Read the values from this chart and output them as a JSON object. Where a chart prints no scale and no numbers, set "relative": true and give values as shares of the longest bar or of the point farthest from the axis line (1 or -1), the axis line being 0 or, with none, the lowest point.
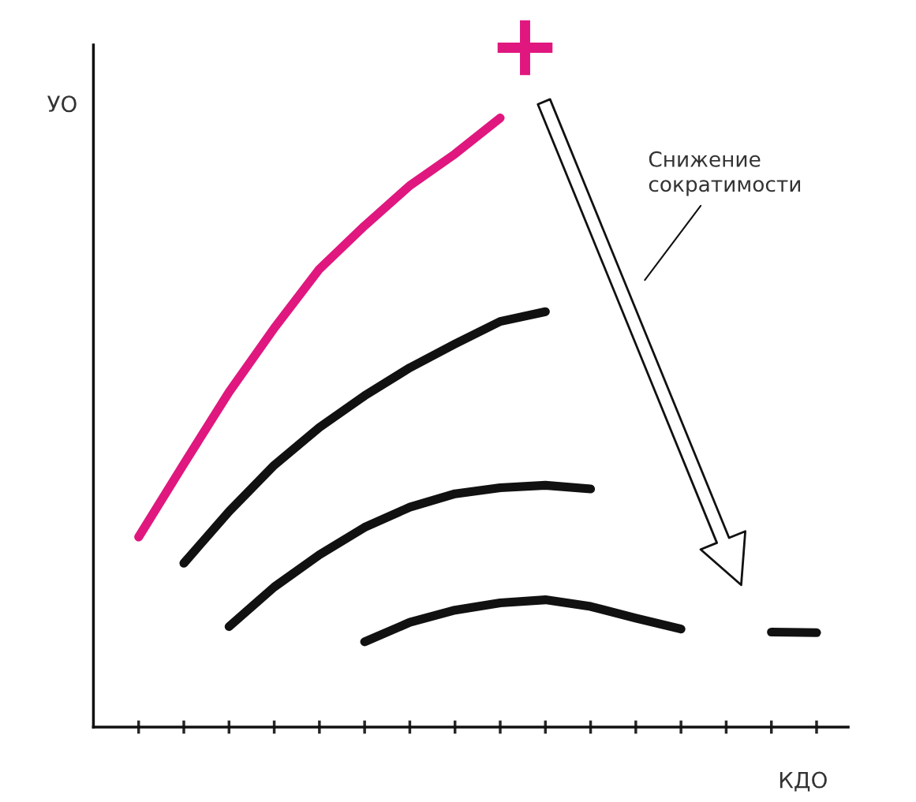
{
  "chart_data": {
    "type": "line",
    "relative": true,
    "xlabel": "КДО",
    "ylabel": "УО",
    "categories": [
      null,
      null,
      null,
      null,
      null,
      null,
      null,
      null,
      null,
      null,
      null,
      null,
      null,
      null,
      null,
      null
    ],
    "series": [
      {
        "color": "#e0177f",
        "values": [
          0.312,
          0.432,
          0.55,
          0.655,
          0.752,
          0.823,
          0.889,
          0.941,
          1.0,
          null,
          null,
          null,
          null,
          null,
          null,
          null
        ]
      },
      {
        "color": "#111111",
        "values": [
          null,
          0.269,
          0.354,
          0.43,
          0.492,
          0.544,
          0.59,
          0.629,
          0.666,
          0.682,
          null,
          null,
          null,
          null,
          null,
          null
        ]
      },
      {
        "color": "#111111",
        "values": [
          null,
          null,
          0.165,
          0.23,
          0.283,
          0.328,
          0.361,
          0.383,
          0.393,
          0.397,
          0.391,
          null,
          null,
          null,
          null,
          null
        ]
      },
      {
        "color": "#111111",
        "values": [
          null,
          null,
          null,
          null,
          null,
          0.14,
          0.172,
          0.192,
          0.204,
          0.209,
          0.198,
          0.179,
          0.161,
          null,
          null,
          null
        ]
      },
      {
        "color": "#111111",
        "values": [
          null,
          null,
          null,
          null,
          null,
          null,
          null,
          null,
          null,
          null,
          null,
          null,
          null,
          null,
          0.156,
          0.155
        ]
      }
    ],
    "annotations": [
      "+",
      "Снижение\nсократимости"
    ],
    "grid": false,
    "legend": false
  }
}
